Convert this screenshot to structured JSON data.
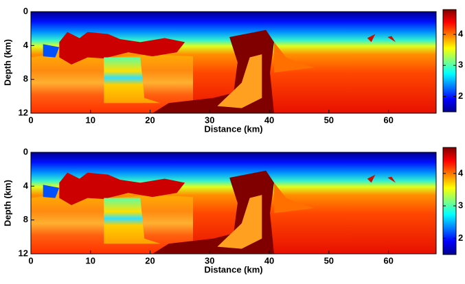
{
  "chart_data": [
    {
      "type": "heatmap",
      "xlabel": "Distance (km)",
      "ylabel": "Depth (km)",
      "xlim": [
        0,
        68
      ],
      "xticks": [
        0,
        10,
        20,
        30,
        40,
        50,
        60
      ],
      "ylim": [
        12,
        0
      ],
      "yticks": [
        0,
        4,
        8,
        12
      ],
      "clim": [
        1.5,
        4.8
      ],
      "cticks": [
        2,
        3,
        4
      ],
      "colormap": "jet"
    },
    {
      "type": "heatmap",
      "xlabel": "Distance (km)",
      "ylabel": "Depth (km)",
      "xlim": [
        0,
        68
      ],
      "xticks": [
        0,
        10,
        20,
        30,
        40,
        50,
        60
      ],
      "ylim": [
        12,
        0
      ],
      "yticks": [
        0,
        4,
        8,
        12
      ],
      "clim": [
        1.5,
        4.8
      ],
      "cticks": [
        2,
        3,
        4
      ],
      "colormap": "jet"
    }
  ]
}
